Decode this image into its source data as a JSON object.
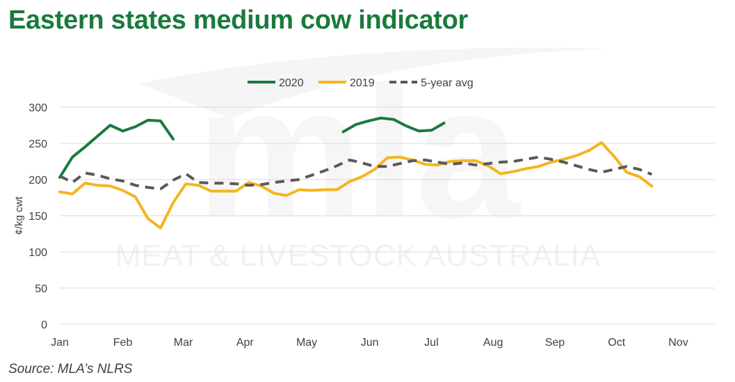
{
  "title": "Eastern states medium cow indicator",
  "source": "Source: MLA’s NLRS",
  "watermark": {
    "text": "MEAT & LIVESTOCK AUSTRALIA",
    "mark": "mla"
  },
  "colors": {
    "s2020": "#1a7a3e",
    "s2019": "#f5b41e",
    "avg": "#595959",
    "grid": "#d9d9d9"
  },
  "chart_data": {
    "type": "line",
    "ylabel": "¢/kg cwt",
    "ylim": [
      0,
      300
    ],
    "yticks": [
      0,
      50,
      100,
      150,
      200,
      250,
      300
    ],
    "xlim": [
      0,
      52
    ],
    "xtick_labels": [
      "Jan",
      "Feb",
      "Mar",
      "Apr",
      "May",
      "Jun",
      "Jul",
      "Aug",
      "Sep",
      "Oct",
      "Nov"
    ],
    "xtick_weeks": [
      0,
      5,
      9.8,
      14.7,
      19.6,
      24.6,
      29.5,
      34.4,
      39.3,
      44.2,
      49.1
    ],
    "grid": true,
    "legend_position": "top",
    "series": [
      {
        "name": "2020",
        "key": "s2020",
        "style": "solid",
        "segments": [
          [
            [
              0,
              203
            ],
            [
              1,
              231
            ],
            [
              2,
              245
            ],
            [
              3,
              260
            ],
            [
              4,
              275
            ],
            [
              5,
              267
            ],
            [
              6,
              273
            ],
            [
              7,
              282
            ],
            [
              8,
              281
            ],
            [
              9,
              256
            ]
          ],
          [
            [
              22.5,
              266
            ],
            [
              23.5,
              276
            ],
            [
              24.5,
              281
            ],
            [
              25.5,
              285
            ],
            [
              26.5,
              283
            ],
            [
              27.5,
              274
            ],
            [
              28.5,
              267
            ],
            [
              29.5,
              268
            ],
            [
              30.5,
              278
            ]
          ]
        ]
      },
      {
        "name": "2019",
        "key": "s2019",
        "style": "solid",
        "segments": [
          [
            [
              0,
              183
            ],
            [
              1,
              180
            ],
            [
              2,
              195
            ],
            [
              3,
              192
            ],
            [
              4,
              191
            ],
            [
              5,
              185
            ],
            [
              6,
              176
            ],
            [
              7,
              146
            ],
            [
              8,
              133
            ],
            [
              9,
              168
            ],
            [
              10,
              194
            ],
            [
              11,
              192
            ],
            [
              12,
              184
            ],
            [
              13,
              184
            ],
            [
              14,
              184
            ],
            [
              15,
              196
            ],
            [
              16,
              191
            ],
            [
              17,
              181
            ],
            [
              18,
              178
            ],
            [
              19,
              186
            ],
            [
              20,
              185
            ],
            [
              21,
              186
            ],
            [
              22,
              186
            ],
            [
              23,
              197
            ],
            [
              24,
              204
            ],
            [
              25,
              214
            ],
            [
              26,
              230
            ],
            [
              27,
              231
            ],
            [
              28,
              227
            ],
            [
              29,
              221
            ],
            [
              30,
              220
            ],
            [
              31,
              225
            ],
            [
              32,
              226
            ],
            [
              33,
              226
            ],
            [
              34,
              219
            ],
            [
              35,
              208
            ],
            [
              36,
              211
            ],
            [
              37,
              215
            ],
            [
              38,
              218
            ],
            [
              39,
              224
            ],
            [
              40,
              228
            ],
            [
              41,
              233
            ],
            [
              42,
              240
            ],
            [
              43,
              251
            ],
            [
              44,
              232
            ],
            [
              45,
              210
            ],
            [
              46,
              204
            ],
            [
              47,
              191
            ]
          ]
        ]
      },
      {
        "name": "5-year avg",
        "key": "avg",
        "style": "dashed",
        "segments": [
          [
            [
              0,
              205
            ],
            [
              1,
              196
            ],
            [
              2,
              209
            ],
            [
              3,
              206
            ],
            [
              4,
              201
            ],
            [
              5,
              198
            ],
            [
              6,
              192
            ],
            [
              7,
              189
            ],
            [
              8,
              187
            ],
            [
              9,
              199
            ],
            [
              10,
              208
            ],
            [
              11,
              196
            ],
            [
              12,
              195
            ],
            [
              13,
              195
            ],
            [
              14,
              194
            ],
            [
              15,
              192
            ],
            [
              16,
              193
            ],
            [
              17,
              196
            ],
            [
              18,
              198
            ],
            [
              19,
              200
            ],
            [
              20,
              206
            ],
            [
              21,
              212
            ],
            [
              22,
              219
            ],
            [
              23,
              227
            ],
            [
              24,
              223
            ],
            [
              25,
              218
            ],
            [
              26,
              218
            ],
            [
              27,
              222
            ],
            [
              28,
              226
            ],
            [
              29,
              227
            ],
            [
              30,
              224
            ],
            [
              31,
              221
            ],
            [
              32,
              223
            ],
            [
              33,
              220
            ],
            [
              34,
              222
            ],
            [
              35,
              224
            ],
            [
              36,
              225
            ],
            [
              37,
              228
            ],
            [
              38,
              231
            ],
            [
              39,
              228
            ],
            [
              40,
              224
            ],
            [
              41,
              219
            ],
            [
              42,
              214
            ],
            [
              43,
              210
            ],
            [
              44,
              214
            ],
            [
              45,
              218
            ],
            [
              46,
              214
            ],
            [
              47,
              207
            ]
          ]
        ]
      }
    ]
  }
}
